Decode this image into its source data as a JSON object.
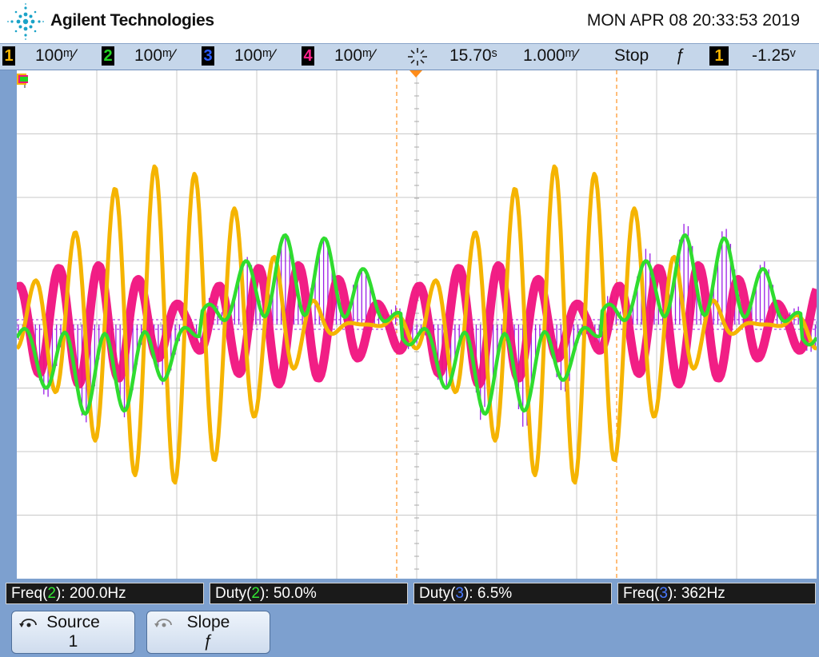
{
  "header": {
    "brand": "Agilent Technologies",
    "datetime": "MON APR 08 20:33:53 2019"
  },
  "status": {
    "ch1": {
      "num": "1",
      "scale": "100ᵐ⁄",
      "color": "#f5b400"
    },
    "ch2": {
      "num": "2",
      "scale": "100ᵐ⁄",
      "color": "#22d422"
    },
    "ch3": {
      "num": "3",
      "scale": "100ᵐ⁄",
      "color": "#2a5cff"
    },
    "ch4": {
      "num": "4",
      "scale": "100ᵐ⁄",
      "color": "#ff1f8a"
    },
    "delay": "15.70ˢ",
    "timebase": "1.000ᵐ⁄",
    "run_state": "Stop",
    "trigger_slope": "ƒ",
    "trigger_source": "1",
    "trigger_level": "-1.25ᵛ"
  },
  "measurements": [
    {
      "prefix": "Freq(",
      "ch": "2",
      "suffix": "): 200.0Hz"
    },
    {
      "prefix": "Duty(",
      "ch": "2",
      "suffix": "): 50.0%"
    },
    {
      "prefix": "Duty(",
      "ch": "3",
      "suffix": "): 6.5%"
    },
    {
      "prefix": "Freq(",
      "ch": "3",
      "suffix": "): 362Hz"
    }
  ],
  "softkeys": {
    "source": {
      "label": "Source",
      "value": "1"
    },
    "slope": {
      "label": "Slope",
      "value": "ƒ"
    }
  },
  "colors": {
    "ch1": "#f5b400",
    "ch2": "#22d422",
    "ch3": "#9a1ee6",
    "ch4": "#f0127e",
    "grid": "#c8c8c8",
    "cursor": "#ff9a33"
  }
}
